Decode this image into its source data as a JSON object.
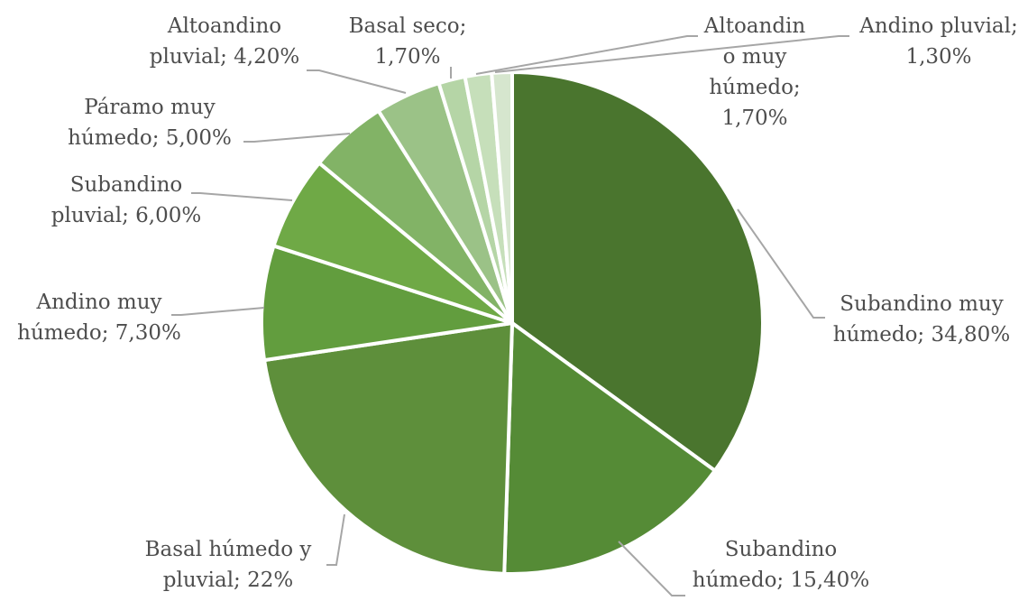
{
  "chart_data": {
    "type": "pie",
    "series": [
      {
        "values": [
          34.8,
          15.4,
          22,
          7.3,
          6.0,
          5.0,
          4.2,
          1.7,
          1.7,
          1.3
        ],
        "colors": [
          "#4a752e",
          "#558b36",
          "#5e8f3b",
          "#629d3e",
          "#6fa946",
          "#82b366",
          "#9bc287",
          "#b5d5a6",
          "#c6dfba",
          "#d6e6ce"
        ]
      }
    ],
    "categories": [
      "Subandino muy húmedo",
      "Subandino húmedo",
      "Basal húmedo y pluvial",
      "Andino muy húmedo",
      "Subandino pluvial",
      "Páramo muy húmedo",
      "Altoandino pluvial",
      "Basal seco",
      "Altoandino muy húmedo",
      "Andino pluvial"
    ],
    "data_labels": [
      [
        "Subandino muy",
        "húmedo; 34,80%"
      ],
      [
        "Subandino",
        "húmedo; 15,40%"
      ],
      [
        "Basal húmedo y",
        "pluvial; 22%"
      ],
      [
        "Andino muy",
        "húmedo; 7,30%"
      ],
      [
        "Subandino",
        "pluvial; 6,00%"
      ],
      [
        "Páramo muy",
        "húmedo; 5,00%"
      ],
      [
        "Altoandino",
        "pluvial; 4,20%"
      ],
      [
        "Basal seco;",
        "1,70%"
      ],
      [
        "Altoandin",
        "o muy",
        "húmedo;",
        "1,70%"
      ],
      [
        "Andino pluvial;",
        "1,30%"
      ]
    ],
    "start_angle_deg": 0,
    "direction": "clockwise",
    "legend": "none"
  }
}
